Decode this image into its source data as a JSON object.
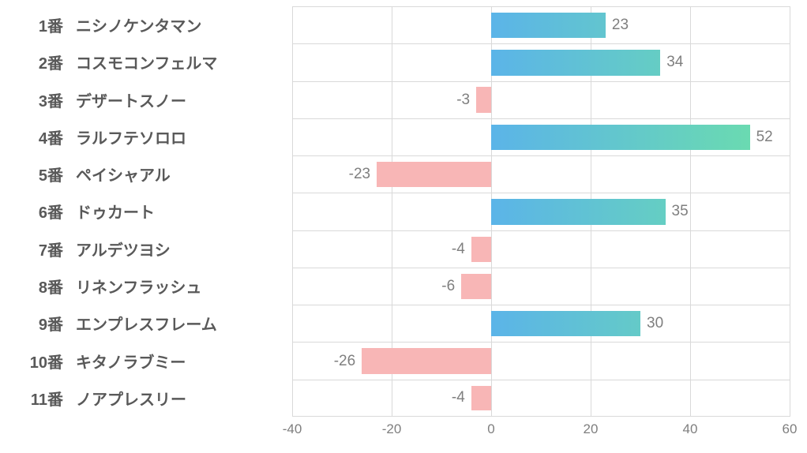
{
  "chart": {
    "type": "horizontal_diverging_bar",
    "background_color": "#ffffff",
    "grid_color": "#d9d9d9",
    "text_color": "#595959",
    "value_label_color": "#7f7f7f",
    "y_label_fontsize": 20,
    "y_label_fontweight": "bold",
    "value_label_fontsize": 19,
    "x_tick_fontsize": 17,
    "xlim": [
      -40,
      60
    ],
    "xticks": [
      -40,
      -20,
      0,
      20,
      40,
      60
    ],
    "bar_height_ratio": 0.7,
    "negative_color": "#f8b6b6",
    "positive_gradient_from": "#5bb4e8",
    "positive_gradient_to": "#6ce0a8",
    "rows": [
      {
        "num": "1番",
        "name": "ニシノケンタマン",
        "value": 23
      },
      {
        "num": "2番",
        "name": "コスモコンフェルマ",
        "value": 34
      },
      {
        "num": "3番",
        "name": "デザートスノー",
        "value": -3
      },
      {
        "num": "4番",
        "name": "ラルフテソロロ",
        "value": 52
      },
      {
        "num": "5番",
        "name": "ペイシャアル",
        "value": -23
      },
      {
        "num": "6番",
        "name": "ドゥカート",
        "value": 35
      },
      {
        "num": "7番",
        "name": "アルデツヨシ",
        "value": -4
      },
      {
        "num": "8番",
        "name": "リネンフラッシュ",
        "value": -6
      },
      {
        "num": "9番",
        "name": "エンプレスフレーム",
        "value": 30
      },
      {
        "num": "10番",
        "name": "キタノラブミー",
        "value": -26
      },
      {
        "num": "11番",
        "name": "ノアプレスリー",
        "value": -4
      }
    ]
  }
}
